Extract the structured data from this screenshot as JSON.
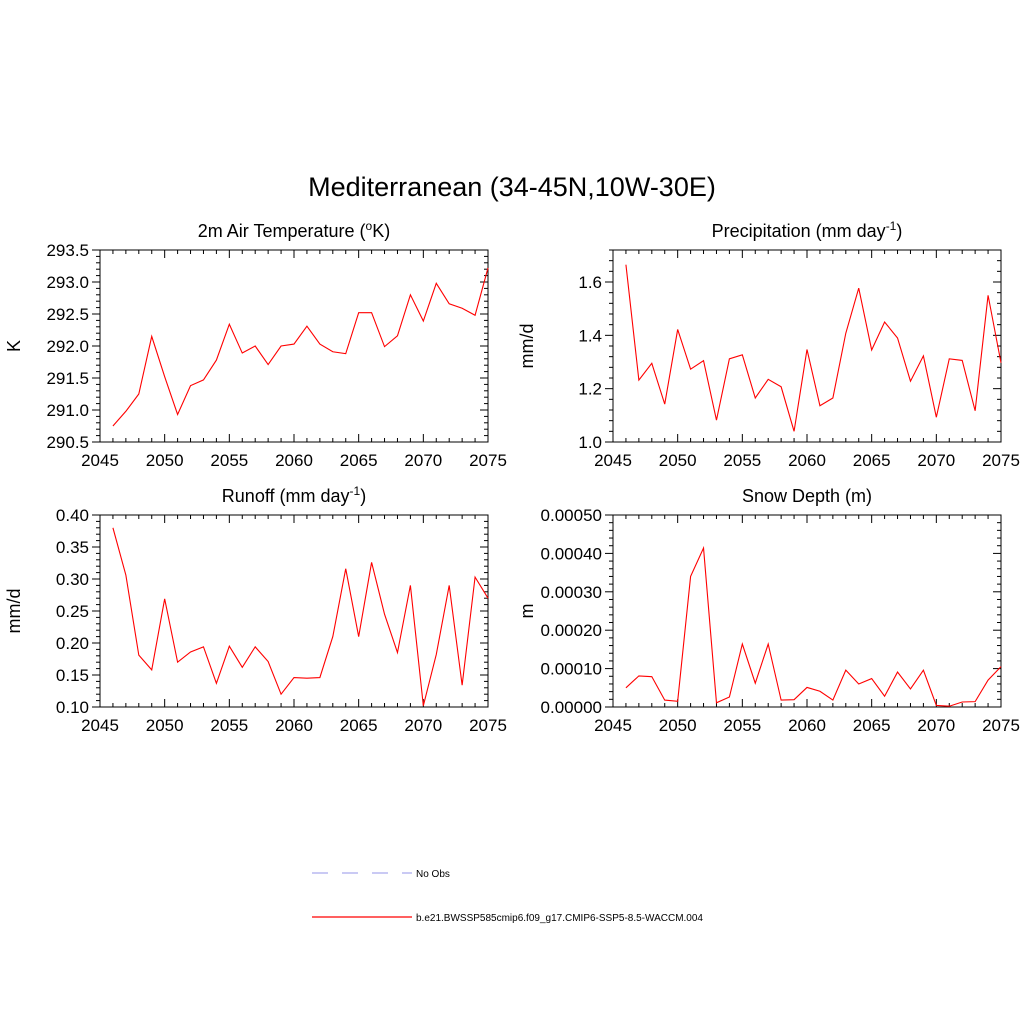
{
  "figure": {
    "title": "Mediterranean (34-45N,10W-30E)"
  },
  "legend": {
    "entries": [
      {
        "label": "No Obs",
        "color": "#aaaaee",
        "style": "dashed"
      },
      {
        "label": "b.e21.BWSSP585cmip6.f09_g17.CMIP6-SSP5-8.5-WACCM.004",
        "color": "#ff0000",
        "style": "solid"
      }
    ]
  },
  "chart_data": [
    {
      "type": "line",
      "title_prefix": "2m Air Temperature (",
      "title_sup": "o",
      "title_suffix": "K)",
      "ylabel": "K",
      "xlim": [
        2045,
        2075
      ],
      "ylim": [
        290.5,
        293.5
      ],
      "xticks": [
        2045,
        2050,
        2055,
        2060,
        2065,
        2070,
        2075
      ],
      "yticks": [
        290.5,
        291.0,
        291.5,
        292.0,
        292.5,
        293.0,
        293.5
      ],
      "yticklabels": [
        "290.5",
        "291.0",
        "291.5",
        "292.0",
        "292.5",
        "293.0",
        "293.5"
      ],
      "series": [
        {
          "name": "b.e21.BWSSP585cmip6.f09_g17.CMIP6-SSP5-8.5-WACCM.004",
          "color": "#ff0000",
          "x": [
            2046,
            2047,
            2048,
            2049,
            2050,
            2051,
            2052,
            2053,
            2054,
            2055,
            2056,
            2057,
            2058,
            2059,
            2060,
            2061,
            2062,
            2063,
            2064,
            2065,
            2066,
            2067,
            2068,
            2069,
            2070,
            2071,
            2072,
            2073,
            2074,
            2075
          ],
          "values": [
            290.75,
            290.98,
            291.25,
            292.15,
            291.52,
            290.93,
            291.38,
            291.47,
            291.78,
            292.34,
            291.89,
            292.0,
            291.71,
            292.0,
            292.03,
            292.31,
            292.03,
            291.91,
            291.88,
            292.52,
            292.52,
            291.99,
            292.16,
            292.8,
            292.39,
            292.98,
            292.66,
            292.59,
            292.48,
            293.22
          ]
        }
      ]
    },
    {
      "type": "line",
      "title_prefix": "Precipitation (mm day",
      "title_sup": "-1",
      "title_suffix": ")",
      "ylabel": "mm/d",
      "xlim": [
        2045,
        2075
      ],
      "ylim": [
        1.0,
        1.72
      ],
      "xticks": [
        2045,
        2050,
        2055,
        2060,
        2065,
        2070,
        2075
      ],
      "yticks": [
        1.0,
        1.2,
        1.4,
        1.6
      ],
      "yticklabels": [
        "1.0",
        "1.2",
        "1.4",
        "1.6"
      ],
      "series": [
        {
          "name": "b.e21.BWSSP585cmip6.f09_g17.CMIP6-SSP5-8.5-WACCM.004",
          "color": "#ff0000",
          "x": [
            2046,
            2047,
            2048,
            2049,
            2050,
            2051,
            2052,
            2053,
            2054,
            2055,
            2056,
            2057,
            2058,
            2059,
            2060,
            2061,
            2062,
            2063,
            2064,
            2065,
            2066,
            2067,
            2068,
            2069,
            2070,
            2071,
            2072,
            2073,
            2074,
            2075
          ],
          "values": [
            1.665,
            1.232,
            1.295,
            1.142,
            1.422,
            1.273,
            1.305,
            1.082,
            1.312,
            1.327,
            1.165,
            1.235,
            1.207,
            1.04,
            1.347,
            1.136,
            1.165,
            1.408,
            1.577,
            1.345,
            1.45,
            1.39,
            1.228,
            1.323,
            1.093,
            1.312,
            1.306,
            1.117,
            1.55,
            1.297
          ]
        }
      ]
    },
    {
      "type": "line",
      "title_prefix": "Runoff (mm day",
      "title_sup": "-1",
      "title_suffix": ")",
      "ylabel": "mm/d",
      "xlim": [
        2045,
        2075
      ],
      "ylim": [
        0.1,
        0.4
      ],
      "xticks": [
        2045,
        2050,
        2055,
        2060,
        2065,
        2070,
        2075
      ],
      "yticks": [
        0.1,
        0.15,
        0.2,
        0.25,
        0.3,
        0.35,
        0.4
      ],
      "yticklabels": [
        "0.10",
        "0.15",
        "0.20",
        "0.25",
        "0.30",
        "0.35",
        "0.40"
      ],
      "series": [
        {
          "name": "b.e21.BWSSP585cmip6.f09_g17.CMIP6-SSP5-8.5-WACCM.004",
          "color": "#ff0000",
          "x": [
            2046,
            2047,
            2048,
            2049,
            2050,
            2051,
            2052,
            2053,
            2054,
            2055,
            2056,
            2057,
            2058,
            2059,
            2060,
            2061,
            2062,
            2063,
            2064,
            2065,
            2066,
            2067,
            2068,
            2069,
            2070,
            2071,
            2072,
            2073,
            2074,
            2075
          ],
          "values": [
            0.38,
            0.306,
            0.181,
            0.158,
            0.269,
            0.17,
            0.186,
            0.194,
            0.137,
            0.195,
            0.162,
            0.194,
            0.171,
            0.12,
            0.146,
            0.145,
            0.146,
            0.21,
            0.316,
            0.21,
            0.326,
            0.245,
            0.185,
            0.29,
            0.102,
            0.182,
            0.29,
            0.134,
            0.303,
            0.27
          ]
        }
      ]
    },
    {
      "type": "line",
      "title_prefix": "Snow Depth (m)",
      "title_sup": "",
      "title_suffix": "",
      "ylabel": "m",
      "xlim": [
        2045,
        2075
      ],
      "ylim": [
        0.0,
        0.0005
      ],
      "xticks": [
        2045,
        2050,
        2055,
        2060,
        2065,
        2070,
        2075
      ],
      "yticks": [
        0.0,
        0.0001,
        0.0002,
        0.0003,
        0.0004,
        0.0005
      ],
      "yticklabels": [
        "0.00000",
        "0.00010",
        "0.00020",
        "0.00030",
        "0.00040",
        "0.00050"
      ],
      "series": [
        {
          "name": "b.e21.BWSSP585cmip6.f09_g17.CMIP6-SSP5-8.5-WACCM.004",
          "color": "#ff0000",
          "x": [
            2046,
            2047,
            2048,
            2049,
            2050,
            2051,
            2052,
            2053,
            2054,
            2055,
            2056,
            2057,
            2058,
            2059,
            2060,
            2061,
            2062,
            2063,
            2064,
            2065,
            2066,
            2067,
            2068,
            2069,
            2070,
            2071,
            2072,
            2073,
            2074,
            2075
          ],
          "values": [
            5e-05,
            8.1e-05,
            7.9e-05,
            1.8e-05,
            1.5e-05,
            0.00034,
            0.000414,
            1.1e-05,
            2.6e-05,
            0.000164,
            6.2e-05,
            0.000164,
            1.8e-05,
            1.9e-05,
            5.1e-05,
            4.1e-05,
            1.8e-05,
            9.6e-05,
            6e-05,
            7.4e-05,
            2.8e-05,
            9.1e-05,
            4.7e-05,
            9.6e-05,
            4e-06,
            2e-06,
            1.3e-05,
            1.4e-05,
            7e-05,
            0.000105
          ]
        }
      ]
    }
  ]
}
